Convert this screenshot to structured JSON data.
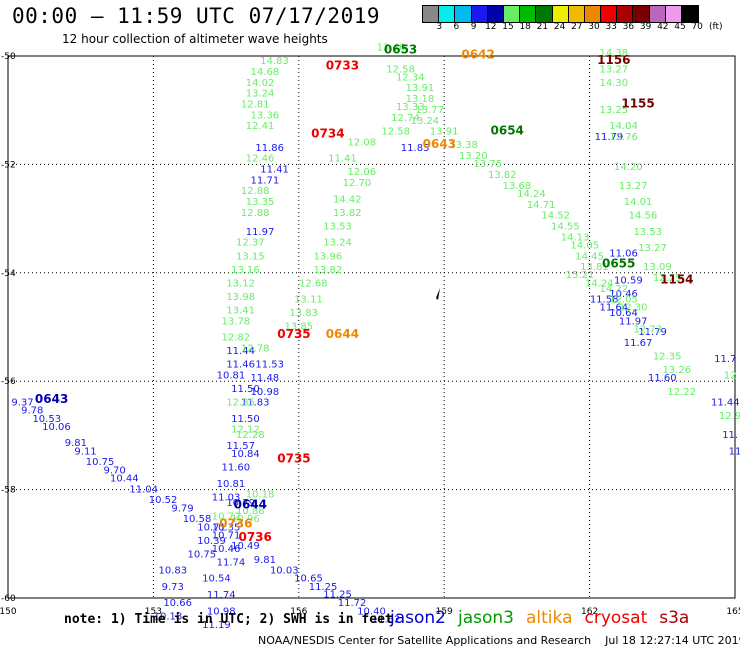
{
  "header": {
    "title": "00:00 – 11:59 UTC 07/17/2019",
    "subtitle": "12 hour collection of altimeter wave heights"
  },
  "legend": {
    "colors": [
      "#888888",
      "#00eeee",
      "#00bbee",
      "#1a1aee",
      "#0000aa",
      "#66ee66",
      "#00bb00",
      "#007700",
      "#eeee00",
      "#eebb00",
      "#ee8800",
      "#ee0000",
      "#aa0000",
      "#770000",
      "#bb66bb",
      "#ee99ee",
      "#000000"
    ],
    "labels": [
      "3",
      "6",
      "9",
      "12",
      "15",
      "18",
      "21",
      "24",
      "27",
      "30",
      "33",
      "36",
      "39",
      "42",
      "45",
      "70"
    ],
    "unit": "(ft)"
  },
  "map": {
    "x_ticks": [
      "150",
      "153",
      "156",
      "159",
      "162",
      "165"
    ],
    "y_ticks": [
      "-50",
      "-52",
      "-54",
      "-56",
      "-58",
      "-60"
    ],
    "time_labels": [
      {
        "t": "0653",
        "c": "#007700",
        "lon": 158.1,
        "lat": -49.95
      },
      {
        "t": "0642",
        "c": "#ee8800",
        "lon": 159.7,
        "lat": -50.05
      },
      {
        "t": "1156",
        "c": "#770000",
        "lon": 162.5,
        "lat": -50.15
      },
      {
        "t": "0733",
        "c": "#ee0000",
        "lon": 156.9,
        "lat": -50.25
      },
      {
        "t": "1155",
        "c": "#770000",
        "lon": 163.0,
        "lat": -50.95
      },
      {
        "t": "0734",
        "c": "#ee0000",
        "lon": 156.6,
        "lat": -51.5
      },
      {
        "t": "0654",
        "c": "#007700",
        "lon": 160.3,
        "lat": -51.45
      },
      {
        "t": "0643",
        "c": "#ee8800",
        "lon": 158.9,
        "lat": -51.7
      },
      {
        "t": "0655",
        "c": "#007700",
        "lon": 162.6,
        "lat": -53.9
      },
      {
        "t": "1154",
        "c": "#770000",
        "lon": 163.8,
        "lat": -54.2
      },
      {
        "t": "0735",
        "c": "#ee0000",
        "lon": 155.9,
        "lat": -55.2
      },
      {
        "t": "0644",
        "c": "#ee8800",
        "lon": 156.9,
        "lat": -55.2
      },
      {
        "t": "0643",
        "c": "#0000aa",
        "lon": 150.9,
        "lat": -56.4
      },
      {
        "t": "0735",
        "c": "#ee0000",
        "lon": 155.9,
        "lat": -57.5
      },
      {
        "t": "0644",
        "c": "#0000aa",
        "lon": 155.0,
        "lat": -58.35
      },
      {
        "t": "0736",
        "c": "#ee0000",
        "lon": 155.1,
        "lat": -58.95
      },
      {
        "t": "0736",
        "c": "#ee8800",
        "lon": 154.7,
        "lat": -58.7
      }
    ],
    "tracks": [
      {
        "name": "jason2-a",
        "c": "#1a1aee",
        "pts": [
          [
            150.3,
            -56.45,
            "9.37"
          ],
          [
            150.5,
            -56.6,
            "9.78"
          ],
          [
            150.8,
            -56.75,
            "10.53"
          ],
          [
            151.0,
            -56.9,
            "10.06"
          ],
          [
            151.4,
            -57.2,
            "9.81"
          ],
          [
            151.6,
            -57.35,
            "9.11"
          ],
          [
            151.9,
            -57.55,
            "10.75"
          ],
          [
            152.2,
            -57.7,
            "9.70"
          ],
          [
            152.4,
            -57.85,
            "10.44"
          ],
          [
            152.8,
            -58.05,
            "11.04"
          ],
          [
            153.2,
            -58.25,
            "10.52"
          ],
          [
            153.6,
            -58.4,
            "9.79"
          ],
          [
            153.9,
            -58.6,
            "10.58"
          ],
          [
            154.2,
            -58.75,
            "10.71"
          ],
          [
            154.5,
            -58.9,
            "10.71"
          ],
          [
            154.9,
            -59.1,
            "10.49"
          ],
          [
            155.3,
            -59.35,
            "9.81"
          ],
          [
            155.7,
            -59.55,
            "10.03"
          ],
          [
            156.2,
            -59.7,
            "10.65"
          ],
          [
            156.5,
            -59.85,
            "11.25"
          ],
          [
            156.8,
            -59.99,
            "11.25"
          ],
          [
            157.1,
            -60.15,
            "11.72"
          ],
          [
            157.5,
            -60.3,
            "10.40"
          ],
          [
            157.8,
            -60.45,
            "11.62"
          ]
        ]
      },
      {
        "name": "jason2-b",
        "c": "#1a1aee",
        "pts": [
          [
            154.5,
            -58.75,
            "10.35"
          ],
          [
            154.2,
            -59.0,
            "10.39"
          ],
          [
            154.5,
            -59.15,
            "10.46"
          ],
          [
            154.0,
            -59.25,
            "10.75"
          ],
          [
            154.6,
            -59.4,
            "11.74"
          ],
          [
            153.4,
            -59.55,
            "10.83"
          ],
          [
            154.3,
            -59.7,
            "10.54"
          ],
          [
            153.4,
            -59.85,
            "9.73"
          ],
          [
            154.4,
            -60.0,
            "11.74"
          ],
          [
            153.5,
            -60.15,
            "10.66"
          ],
          [
            154.4,
            -60.3,
            "10.98"
          ],
          [
            153.3,
            -60.4,
            "10.18"
          ],
          [
            154.3,
            -60.55,
            "11.19"
          ]
        ]
      },
      {
        "name": "jason2-c",
        "c": "#1a1aee",
        "pts": [
          [
            155.4,
            -51.75,
            "11.86"
          ],
          [
            155.5,
            -52.15,
            "11.41"
          ],
          [
            155.3,
            -52.35,
            "11.71"
          ],
          [
            155.2,
            -53.3,
            "11.97"
          ],
          [
            154.8,
            -55.5,
            "11.44"
          ],
          [
            155.4,
            -55.75,
            "11.53"
          ],
          [
            154.8,
            -55.75,
            "11.46"
          ],
          [
            154.6,
            -55.95,
            "10.81"
          ],
          [
            155.3,
            -56.0,
            "11.48"
          ],
          [
            154.9,
            -56.2,
            "11.50"
          ],
          [
            155.3,
            -56.25,
            "10.98"
          ],
          [
            155.1,
            -56.45,
            "11.83"
          ],
          [
            154.9,
            -56.75,
            "11.50"
          ],
          [
            154.8,
            -57.25,
            "11.57"
          ],
          [
            154.9,
            -57.4,
            "10.84"
          ],
          [
            154.7,
            -57.65,
            "11.60"
          ],
          [
            154.6,
            -57.95,
            "10.81"
          ],
          [
            154.5,
            -58.2,
            "11.03"
          ],
          [
            154.8,
            -58.3,
            "10.79"
          ]
        ]
      },
      {
        "name": "jason2-d",
        "c": "#1a1aee",
        "pts": [
          [
            158.4,
            -51.75,
            "11.85"
          ],
          [
            162.4,
            -51.55,
            "11.79"
          ],
          [
            162.7,
            -53.7,
            "11.06"
          ],
          [
            162.8,
            -54.2,
            "10.59"
          ],
          [
            162.7,
            -54.45,
            "10.46"
          ],
          [
            162.3,
            -54.55,
            "11.58"
          ],
          [
            162.5,
            -54.7,
            "11.64"
          ],
          [
            162.7,
            -54.8,
            "10.64"
          ],
          [
            162.9,
            -54.95,
            "11.97"
          ],
          [
            163.3,
            -55.15,
            "11.79"
          ],
          [
            163.0,
            -55.35,
            "11.67"
          ],
          [
            164.8,
            -55.65,
            "11.7"
          ],
          [
            163.5,
            -56.0,
            "11.60"
          ],
          [
            164.8,
            -56.45,
            "11.44"
          ],
          [
            164.9,
            -57.05,
            "11."
          ],
          [
            165.0,
            -57.35,
            "11"
          ]
        ]
      },
      {
        "name": "jason3",
        "c": "#66ee66",
        "pts": [
          [
            155.5,
            -50.15,
            "14.83"
          ],
          [
            155.3,
            -50.35,
            "14.68"
          ],
          [
            155.2,
            -50.55,
            "14.02"
          ],
          [
            155.2,
            -50.75,
            "13.24"
          ],
          [
            155.1,
            -50.95,
            "12.81"
          ],
          [
            155.3,
            -51.15,
            "13.36"
          ],
          [
            155.2,
            -51.35,
            "12.41"
          ],
          [
            155.2,
            -51.95,
            "12.46"
          ],
          [
            155.1,
            -52.55,
            "12.88"
          ],
          [
            155.2,
            -52.75,
            "13.35"
          ],
          [
            155.1,
            -52.95,
            "12.88"
          ],
          [
            155.0,
            -53.5,
            "12.37"
          ],
          [
            155.0,
            -53.75,
            "13.15"
          ],
          [
            154.9,
            -54.0,
            "13.16"
          ],
          [
            154.8,
            -54.25,
            "13.12"
          ],
          [
            154.8,
            -54.5,
            "13.98"
          ],
          [
            154.8,
            -54.75,
            "13.41"
          ],
          [
            154.7,
            -54.95,
            "13.78"
          ],
          [
            154.7,
            -55.25,
            "12.82"
          ],
          [
            155.1,
            -55.45,
            "12.78"
          ],
          [
            154.8,
            -56.45,
            "12.35"
          ],
          [
            154.9,
            -56.95,
            "12.12"
          ],
          [
            155.0,
            -57.05,
            "12.28"
          ],
          [
            156.9,
            -51.95,
            "11.41"
          ],
          [
            157.3,
            -51.65,
            "12.08"
          ],
          [
            157.3,
            -52.2,
            "12.06"
          ],
          [
            157.2,
            -52.4,
            "12.70"
          ],
          [
            157.0,
            -52.7,
            "14.42"
          ],
          [
            157.0,
            -52.95,
            "13.82"
          ],
          [
            156.8,
            -53.2,
            "13.53"
          ],
          [
            156.8,
            -53.5,
            "13.24"
          ],
          [
            156.6,
            -53.75,
            "13.96"
          ],
          [
            156.6,
            -54.0,
            "13.82"
          ],
          [
            156.3,
            -54.25,
            "12.68"
          ],
          [
            156.2,
            -54.55,
            "13.11"
          ],
          [
            156.1,
            -54.8,
            "13.83"
          ],
          [
            156.0,
            -55.05,
            "13.85"
          ],
          [
            157.9,
            -49.9,
            "13.46"
          ],
          [
            158.1,
            -50.3,
            "12.58"
          ],
          [
            158.3,
            -50.45,
            "12.34"
          ],
          [
            158.5,
            -50.65,
            "13.91"
          ],
          [
            158.5,
            -50.85,
            "13.18"
          ],
          [
            158.3,
            -51.0,
            "13.33"
          ],
          [
            158.7,
            -51.05,
            "13.77"
          ],
          [
            158.2,
            -51.2,
            "12.74"
          ],
          [
            158.6,
            -51.25,
            "13.24"
          ],
          [
            158.0,
            -51.45,
            "12.58"
          ],
          [
            159.0,
            -51.45,
            "13.91"
          ],
          [
            159.4,
            -51.7,
            "13.38"
          ],
          [
            159.6,
            -51.9,
            "13.20"
          ],
          [
            159.9,
            -52.05,
            "13.75"
          ],
          [
            160.2,
            -52.25,
            "13.82"
          ],
          [
            160.5,
            -52.45,
            "13.68"
          ],
          [
            160.8,
            -52.6,
            "14.24"
          ],
          [
            161.0,
            -52.8,
            "14.71"
          ],
          [
            161.3,
            -53.0,
            "14.52"
          ],
          [
            161.5,
            -53.2,
            "14.55"
          ],
          [
            161.7,
            -53.4,
            "14.13"
          ],
          [
            161.9,
            -53.55,
            "14.05"
          ],
          [
            162.0,
            -53.75,
            "14.45"
          ],
          [
            162.1,
            -53.95,
            "13.81"
          ],
          [
            161.8,
            -54.1,
            "15.21"
          ],
          [
            162.2,
            -54.25,
            "14.24"
          ],
          [
            162.5,
            -54.35,
            "14.22"
          ],
          [
            162.7,
            -54.55,
            "12.05"
          ],
          [
            162.9,
            -54.7,
            "12.30"
          ],
          [
            162.5,
            -50.0,
            "14.38"
          ],
          [
            162.5,
            -50.3,
            "13.27"
          ],
          [
            162.5,
            -50.55,
            "14.30"
          ],
          [
            162.5,
            -51.05,
            "13.25"
          ],
          [
            162.7,
            -51.35,
            "14.04"
          ],
          [
            162.7,
            -51.55,
            "12.76"
          ],
          [
            162.8,
            -52.1,
            "14.20"
          ],
          [
            162.9,
            -52.45,
            "13.27"
          ],
          [
            163.0,
            -52.75,
            "14.01"
          ],
          [
            163.1,
            -53.0,
            "14.56"
          ],
          [
            163.2,
            -53.3,
            "13.53"
          ],
          [
            163.3,
            -53.6,
            "13.27"
          ],
          [
            163.4,
            -53.95,
            "13.09"
          ],
          [
            163.6,
            -54.15,
            "12.25"
          ],
          [
            163.2,
            -55.1,
            "12.73"
          ],
          [
            163.6,
            -55.6,
            "12.35"
          ],
          [
            163.8,
            -55.85,
            "13.26"
          ],
          [
            164.9,
            -55.95,
            "12"
          ],
          [
            163.9,
            -56.25,
            "12.22"
          ],
          [
            164.9,
            -56.7,
            "12.9"
          ],
          [
            155.2,
            -58.15,
            "10.18"
          ],
          [
            155.0,
            -58.45,
            "10.88"
          ],
          [
            154.9,
            -58.6,
            "10.96"
          ],
          [
            154.5,
            -58.55,
            "10.72"
          ]
        ]
      }
    ]
  },
  "notes": {
    "text": "note: 1) Time is in UTC; 2) SWH is in feet"
  },
  "satellites": [
    {
      "name": "jason2",
      "c": "#0000cc"
    },
    {
      "name": "jason3",
      "c": "#009900"
    },
    {
      "name": "altika",
      "c": "#ee8800"
    },
    {
      "name": "cryosat",
      "c": "#ee0000"
    },
    {
      "name": "s3a",
      "c": "#aa0000"
    }
  ],
  "footer": {
    "text": "NOAA/NESDIS Center for Satellite Applications and Research    Jul 18 12:27:14 UTC 2019"
  }
}
